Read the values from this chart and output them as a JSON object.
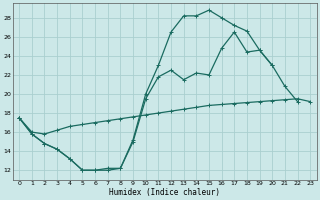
{
  "xlabel": "Humidex (Indice chaleur)",
  "bg_color": "#cce8e8",
  "grid_color": "#aacfcf",
  "line_color": "#1a6b60",
  "xlim": [
    -0.5,
    23.5
  ],
  "ylim": [
    11,
    29.5
  ],
  "xticks": [
    0,
    1,
    2,
    3,
    4,
    5,
    6,
    7,
    8,
    9,
    10,
    11,
    12,
    13,
    14,
    15,
    16,
    17,
    18,
    19,
    20,
    21,
    22,
    23
  ],
  "yticks": [
    12,
    14,
    16,
    18,
    20,
    22,
    24,
    26,
    28
  ],
  "line1_x": [
    0,
    1,
    2,
    3,
    4,
    5,
    6,
    7,
    8,
    9,
    10,
    11,
    12,
    13,
    14,
    15,
    16,
    17,
    18,
    19,
    20,
    21,
    22
  ],
  "line1_y": [
    17.5,
    15.8,
    14.8,
    14.2,
    13.2,
    12.0,
    12.0,
    12.0,
    12.2,
    15.2,
    20.0,
    23.0,
    26.5,
    28.2,
    28.2,
    28.8,
    28.0,
    27.2,
    26.6,
    24.6,
    23.0,
    20.8,
    19.2
  ],
  "line2_x": [
    0,
    1,
    2,
    3,
    4,
    5,
    6,
    7,
    8,
    9,
    10,
    11,
    12,
    13,
    14,
    15,
    16,
    17,
    18,
    19,
    20
  ],
  "line2_y": [
    17.5,
    15.8,
    14.8,
    14.2,
    13.2,
    12.0,
    12.0,
    12.2,
    12.2,
    15.0,
    19.5,
    21.8,
    22.5,
    21.5,
    22.2,
    22.0,
    24.8,
    26.5,
    24.4,
    24.6,
    23.0
  ],
  "line3_x": [
    0,
    1,
    2,
    3,
    4,
    5,
    6,
    7,
    8,
    9,
    10,
    11,
    12,
    13,
    14,
    15,
    16,
    17,
    18,
    19,
    20,
    21,
    22,
    23
  ],
  "line3_y": [
    17.5,
    16.0,
    15.8,
    16.2,
    16.6,
    16.8,
    17.0,
    17.2,
    17.4,
    17.6,
    17.8,
    18.0,
    18.2,
    18.4,
    18.6,
    18.8,
    18.9,
    19.0,
    19.1,
    19.2,
    19.3,
    19.4,
    19.5,
    19.2
  ]
}
